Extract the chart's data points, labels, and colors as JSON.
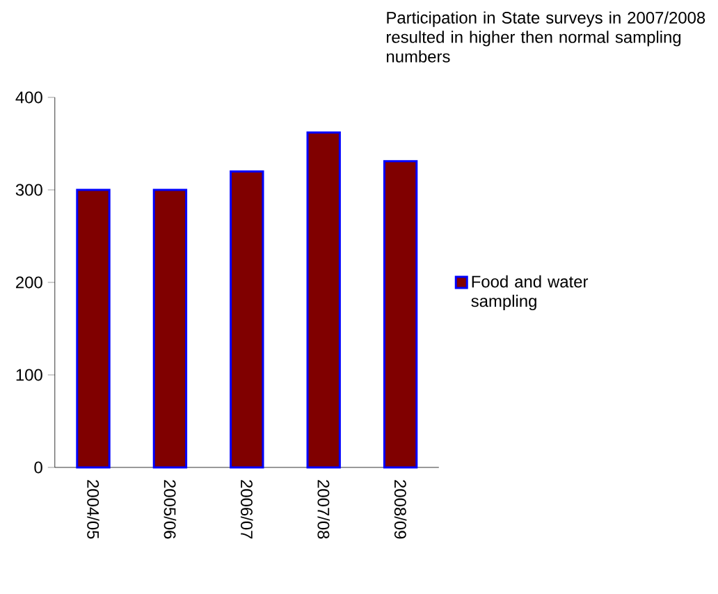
{
  "chart_data": {
    "type": "bar",
    "title": "Participation in State surveys in 2007/2008 resulted in higher then normal sampling numbers",
    "categories": [
      "2004/05",
      "2005/06",
      "2006/07",
      "2007/08",
      "2008/09"
    ],
    "series": [
      {
        "name": "Food and water sampling",
        "color": "#800000",
        "values": [
          300,
          300,
          320,
          362,
          331
        ]
      }
    ],
    "ylim": [
      0,
      400
    ],
    "yticks": [
      0,
      100,
      200,
      300,
      400
    ],
    "legend": "right"
  }
}
